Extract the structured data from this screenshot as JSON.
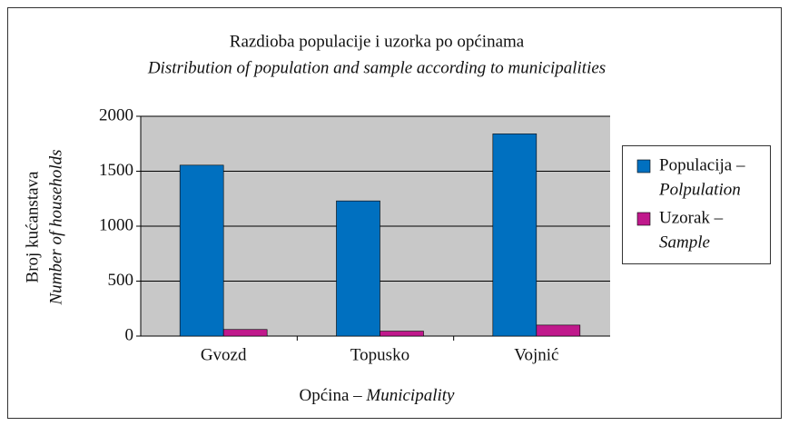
{
  "chart_data": {
    "type": "bar",
    "title": "Razdioba populacije i uzorka po općinama",
    "subtitle": "Distribution of population and sample according to municipalities",
    "y_label": "Broj kućanstava",
    "y_label_en": "Number of households",
    "x_label": "Općina –",
    "x_label_en": "Municipality",
    "categories": [
      "Gvozd",
      "Topusko",
      "Vojnić"
    ],
    "series": [
      {
        "name": "Populacija –",
        "name_en": "Polpulation",
        "color": "#0070c0",
        "values": [
          1555,
          1230,
          1840
        ]
      },
      {
        "name": "Uzorak –",
        "name_en": "Sample",
        "color": "#c0198c",
        "values": [
          60,
          45,
          100
        ]
      }
    ],
    "ylim": [
      0,
      2000
    ],
    "yticks": [
      0,
      500,
      1000,
      1500,
      2000
    ],
    "grid": true,
    "legend": "right"
  }
}
